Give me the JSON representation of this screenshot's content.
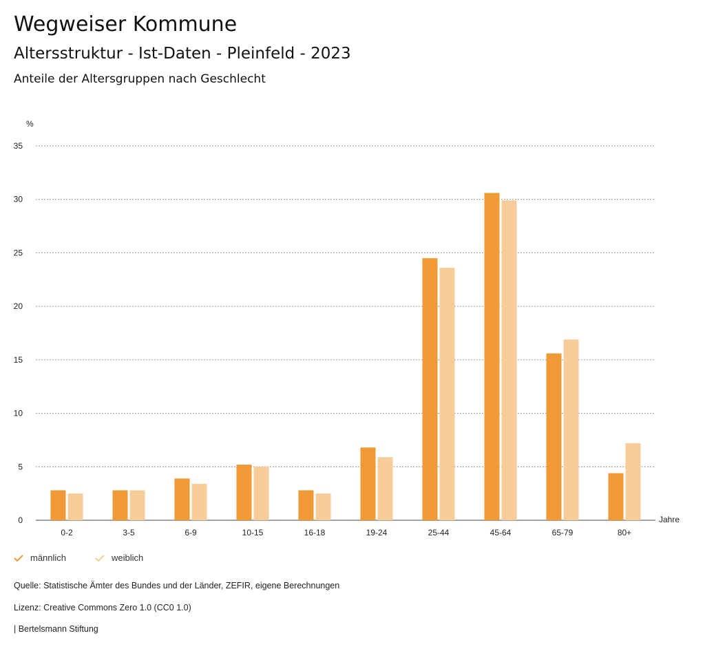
{
  "header": {
    "title": "Wegweiser Kommune",
    "subtitle": "Altersstruktur - Ist-Daten - Pleinfeld - 2023",
    "chart_title": "Anteile der Altersgruppen nach Geschlecht"
  },
  "colors": {
    "male": "#ef9a36",
    "female": "#f5cc9a"
  },
  "chart_data": {
    "type": "bar",
    "title": "Anteile der Altersgruppen nach Geschlecht",
    "xlabel": "Jahre",
    "ylabel": "%",
    "ylim": [
      0,
      35
    ],
    "yticks": [
      0,
      5,
      10,
      15,
      20,
      25,
      30,
      35
    ],
    "categories": [
      "0-2",
      "3-5",
      "6-9",
      "10-15",
      "16-18",
      "19-24",
      "25-44",
      "45-64",
      "65-79",
      "80+"
    ],
    "series": [
      {
        "name": "männlich",
        "values": [
          2.8,
          2.8,
          3.9,
          5.2,
          2.8,
          6.8,
          24.5,
          30.6,
          15.6,
          4.4
        ]
      },
      {
        "name": "weiblich",
        "values": [
          2.5,
          2.8,
          3.4,
          5.0,
          2.5,
          5.9,
          23.6,
          29.9,
          16.9,
          7.2
        ]
      }
    ],
    "grid": true,
    "legend": "bottom-left"
  },
  "footer": {
    "source": "Quelle: Statistische Ämter des Bundes und der Länder, ZEFIR, eigene Berechnungen",
    "license": "Lizenz: Creative Commons Zero 1.0 (CC0 1.0)",
    "brand": "| Bertelsmann Stiftung"
  }
}
